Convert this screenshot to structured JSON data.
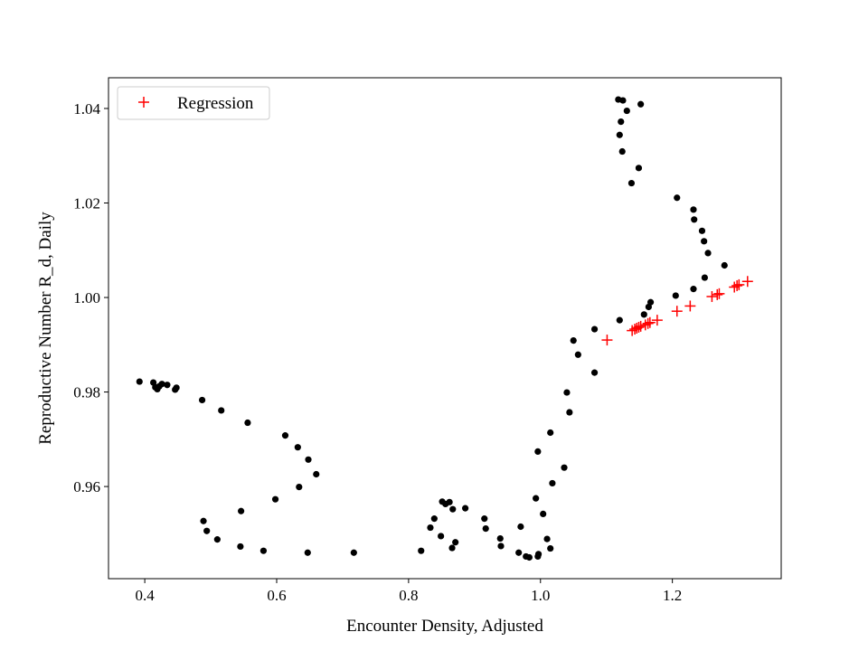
{
  "chart_data": {
    "type": "scatter",
    "xlabel": "Encounter Density, Adjusted",
    "ylabel": "Reproductive Number R_d, Daily",
    "xlim": [
      0.345,
      1.365
    ],
    "ylim": [
      0.9405,
      1.0465
    ],
    "xticks": [
      {
        "value": 0.4,
        "label": "0.4"
      },
      {
        "value": 0.6,
        "label": "0.6"
      },
      {
        "value": 0.8,
        "label": "0.8"
      },
      {
        "value": 1.0,
        "label": "1.0"
      },
      {
        "value": 1.2,
        "label": "1.2"
      }
    ],
    "yticks": [
      {
        "value": 0.96,
        "label": "0.96"
      },
      {
        "value": 0.98,
        "label": "0.98"
      },
      {
        "value": 1.0,
        "label": "1.00"
      },
      {
        "value": 1.02,
        "label": "1.02"
      },
      {
        "value": 1.04,
        "label": "1.04"
      }
    ],
    "grid": false,
    "legend": {
      "placement": "top-left",
      "entries": [
        {
          "label": "Regression",
          "color": "#ff0000",
          "marker": "+"
        }
      ]
    },
    "series": [
      {
        "marker": "circle",
        "color": "#000000",
        "points": [
          [
            0.392,
            0.9822
          ],
          [
            0.413,
            0.982
          ],
          [
            0.416,
            0.981
          ],
          [
            0.419,
            0.9806
          ],
          [
            0.422,
            0.9812
          ],
          [
            0.426,
            0.9817
          ],
          [
            0.434,
            0.9815
          ],
          [
            0.446,
            0.9805
          ],
          [
            0.448,
            0.9809
          ],
          [
            0.487,
            0.9783
          ],
          [
            0.516,
            0.9761
          ],
          [
            0.556,
            0.9735
          ],
          [
            0.613,
            0.9708
          ],
          [
            0.632,
            0.9683
          ],
          [
            0.648,
            0.9657
          ],
          [
            0.66,
            0.9626
          ],
          [
            0.634,
            0.9599
          ],
          [
            0.598,
            0.9573
          ],
          [
            0.546,
            0.9548
          ],
          [
            0.489,
            0.9527
          ],
          [
            0.494,
            0.9506
          ],
          [
            0.51,
            0.9488
          ],
          [
            0.545,
            0.9473
          ],
          [
            0.58,
            0.9464
          ],
          [
            0.647,
            0.946
          ],
          [
            0.717,
            0.946
          ],
          [
            0.819,
            0.9464
          ],
          [
            0.833,
            0.9513
          ],
          [
            0.839,
            0.9532
          ],
          [
            0.851,
            0.9568
          ],
          [
            0.856,
            0.9563
          ],
          [
            0.862,
            0.9567
          ],
          [
            0.867,
            0.9552
          ],
          [
            0.886,
            0.9554
          ],
          [
            0.849,
            0.9495
          ],
          [
            0.871,
            0.9482
          ],
          [
            0.866,
            0.947
          ],
          [
            0.915,
            0.9532
          ],
          [
            0.917,
            0.9511
          ],
          [
            0.939,
            0.949
          ],
          [
            0.94,
            0.9474
          ],
          [
            0.967,
            0.946
          ],
          [
            0.97,
            0.9515
          ],
          [
            0.978,
            0.9452
          ],
          [
            0.983,
            0.945
          ],
          [
            0.996,
            0.9452
          ],
          [
            0.997,
            0.9457
          ],
          [
            0.993,
            0.9575
          ],
          [
            1.004,
            0.9542
          ],
          [
            1.01,
            0.9489
          ],
          [
            1.015,
            0.9469
          ],
          [
            0.996,
            0.9674
          ],
          [
            1.015,
            0.9714
          ],
          [
            1.018,
            0.9607
          ],
          [
            1.036,
            0.964
          ],
          [
            1.04,
            0.9799
          ],
          [
            1.044,
            0.9757
          ],
          [
            1.05,
            0.9909
          ],
          [
            1.057,
            0.9879
          ],
          [
            1.082,
            0.9933
          ],
          [
            1.082,
            0.9841
          ],
          [
            1.12,
            0.9952
          ],
          [
            1.157,
            0.9964
          ],
          [
            1.164,
            0.998
          ],
          [
            1.167,
            0.999
          ],
          [
            1.118,
            1.0419
          ],
          [
            1.125,
            1.0417
          ],
          [
            1.131,
            1.0395
          ],
          [
            1.122,
            1.0372
          ],
          [
            1.12,
            1.0344
          ],
          [
            1.124,
            1.0309
          ],
          [
            1.138,
            1.0242
          ],
          [
            1.152,
            1.0409
          ],
          [
            1.149,
            1.0274
          ],
          [
            1.207,
            1.0211
          ],
          [
            1.232,
            1.0186
          ],
          [
            1.233,
            1.0165
          ],
          [
            1.245,
            1.0141
          ],
          [
            1.248,
            1.0119
          ],
          [
            1.254,
            1.0094
          ],
          [
            1.279,
            1.0068
          ],
          [
            1.249,
            1.0042
          ],
          [
            1.232,
            1.0018
          ],
          [
            1.205,
            1.0004
          ]
        ]
      },
      {
        "name": "Regression",
        "marker": "+",
        "color": "#ff0000",
        "points": [
          [
            1.101,
            0.991
          ],
          [
            1.139,
            0.993
          ],
          [
            1.143,
            0.9933
          ],
          [
            1.146,
            0.9935
          ],
          [
            1.149,
            0.9937
          ],
          [
            1.152,
            0.9939
          ],
          [
            1.159,
            0.9942
          ],
          [
            1.163,
            0.9945
          ],
          [
            1.166,
            0.9947
          ],
          [
            1.177,
            0.9952
          ],
          [
            1.207,
            0.9971
          ],
          [
            1.227,
            0.9982
          ],
          [
            1.26,
            1.0002
          ],
          [
            1.268,
            1.0006
          ],
          [
            1.271,
            1.0008
          ],
          [
            1.294,
            1.0022
          ],
          [
            1.298,
            1.0025
          ],
          [
            1.301,
            1.0027
          ],
          [
            1.314,
            1.0034
          ]
        ]
      }
    ]
  }
}
